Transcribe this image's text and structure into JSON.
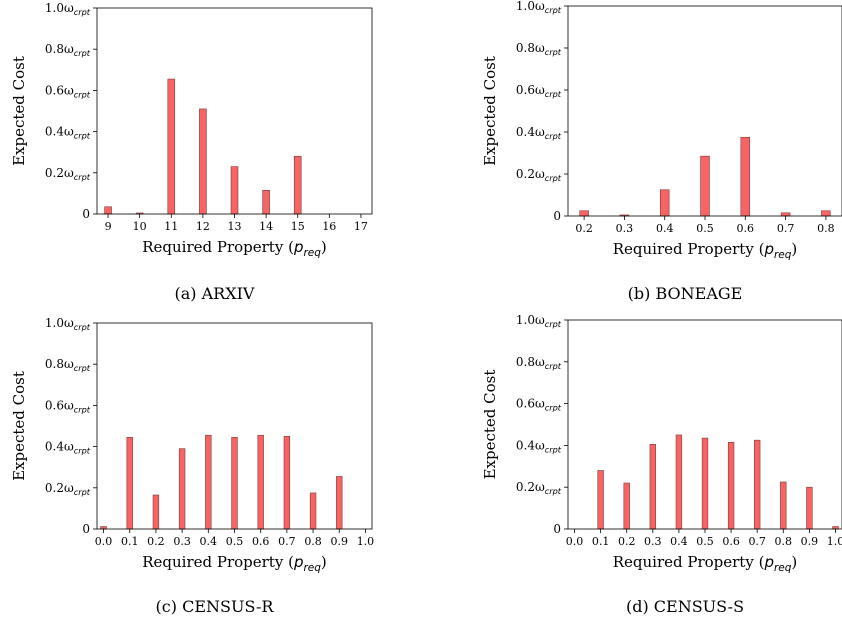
{
  "chart_data": [
    {
      "type": "bar",
      "caption": "(a) ARXIV",
      "xlabel": "Required Property (p_req)",
      "ylabel": "Expected Cost",
      "categories": [
        "9",
        "10",
        "11",
        "12",
        "13",
        "14",
        "15",
        "16",
        "17"
      ],
      "values": [
        0.035,
        0.005,
        0.655,
        0.51,
        0.23,
        0.115,
        0.28,
        0,
        0
      ],
      "ylim": [
        0,
        1.0
      ],
      "yticks": [
        "0",
        "0.2ω_crpt",
        "0.4ω_crpt",
        "0.6ω_crpt",
        "0.8ω_crpt",
        "1.0ω_crpt"
      ],
      "color": "#f86464"
    },
    {
      "type": "bar",
      "caption": "(b) BONEAGE",
      "xlabel": "Required Property (p_req)",
      "ylabel": "Expected Cost",
      "categories": [
        "0.2",
        "0.3",
        "0.4",
        "0.5",
        "0.6",
        "0.7",
        "0.8"
      ],
      "values": [
        0.025,
        0.005,
        0.125,
        0.285,
        0.375,
        0.015,
        0.025
      ],
      "ylim": [
        0,
        1.0
      ],
      "yticks": [
        "0",
        "0.2ω_crpt",
        "0.4ω_crpt",
        "0.6ω_crpt",
        "0.8ω_crpt",
        "1.0ω_crpt"
      ],
      "color": "#f86464"
    },
    {
      "type": "bar",
      "caption": "(c) CENSUS-R",
      "xlabel": "Required Property (p_req)",
      "ylabel": "Expected Cost",
      "categories": [
        "0.0",
        "0.1",
        "0.2",
        "0.3",
        "0.4",
        "0.5",
        "0.6",
        "0.7",
        "0.8",
        "0.9",
        "1.0"
      ],
      "values": [
        0.012,
        0.445,
        0.165,
        0.39,
        0.455,
        0.445,
        0.455,
        0.45,
        0.175,
        0.255,
        0
      ],
      "ylim": [
        0,
        1.0
      ],
      "yticks": [
        "0",
        "0.2ω_crpt",
        "0.4ω_crpt",
        "0.6ω_crpt",
        "0.8ω_crpt",
        "1.0ω_crpt"
      ],
      "color": "#f86464"
    },
    {
      "type": "bar",
      "caption": "(d) CENSUS-S",
      "xlabel": "Required Property (p_req)",
      "ylabel": "Expected Cost",
      "categories": [
        "0.0",
        "0.1",
        "0.2",
        "0.3",
        "0.4",
        "0.5",
        "0.6",
        "0.7",
        "0.8",
        "0.9",
        "1.0"
      ],
      "values": [
        0,
        0.28,
        0.22,
        0.405,
        0.45,
        0.435,
        0.415,
        0.425,
        0.225,
        0.2,
        0.012
      ],
      "ylim": [
        0,
        1.0
      ],
      "yticks": [
        "0",
        "0.2ω_crpt",
        "0.4ω_crpt",
        "0.6ω_crpt",
        "0.8ω_crpt",
        "1.0ω_crpt"
      ],
      "color": "#f86464"
    }
  ]
}
